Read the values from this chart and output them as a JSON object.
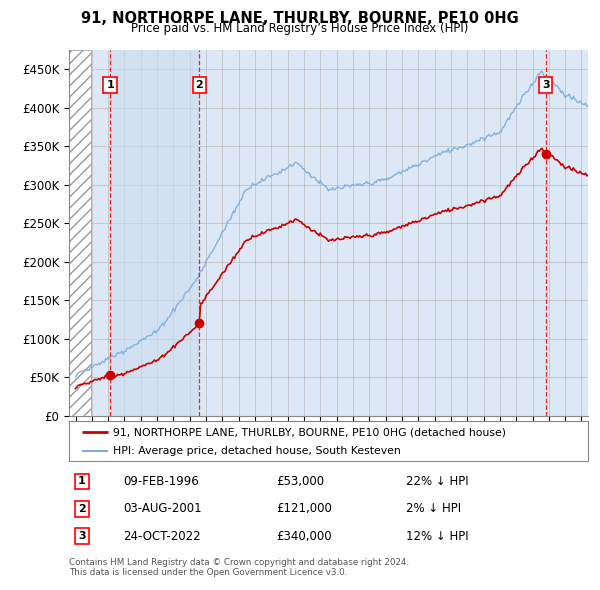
{
  "title": "91, NORTHORPE LANE, THURLBY, BOURNE, PE10 0HG",
  "subtitle": "Price paid vs. HM Land Registry’s House Price Index (HPI)",
  "legend_line1": "91, NORTHORPE LANE, THURLBY, BOURNE, PE10 0HG (detached house)",
  "legend_line2": "HPI: Average price, detached house, South Kesteven",
  "sale_prices": [
    53000,
    121000,
    340000
  ],
  "sale_labels": [
    "1",
    "2",
    "3"
  ],
  "sale_hpi_pct": [
    "22% ↓ HPI",
    "2% ↓ HPI",
    "12% ↓ HPI"
  ],
  "sale_date_str": [
    "09-FEB-1996",
    "03-AUG-2001",
    "24-OCT-2022"
  ],
  "sale_price_str": [
    "£53,000",
    "£121,000",
    "£340,000"
  ],
  "footer1": "Contains HM Land Registry data © Crown copyright and database right 2024.",
  "footer2": "This data is licensed under the Open Government Licence v3.0.",
  "price_line_color": "#cc0000",
  "hpi_line_color": "#7aadde",
  "sale_year_floats": [
    1996.12,
    2001.59,
    2022.81
  ],
  "ylim": [
    0,
    475000
  ],
  "yticks": [
    0,
    50000,
    100000,
    150000,
    200000,
    250000,
    300000,
    350000,
    400000,
    450000
  ],
  "ytick_labels": [
    "£0",
    "£50K",
    "£100K",
    "£150K",
    "£200K",
    "£250K",
    "£300K",
    "£350K",
    "£400K",
    "£450K"
  ],
  "xlim_start": 1993.6,
  "xlim_end": 2025.4,
  "hatch_end": 1994.95,
  "background_color": "#ffffff",
  "plot_bg_color": "#dce8f5",
  "hatch_bg_color": "#c8c8c8"
}
